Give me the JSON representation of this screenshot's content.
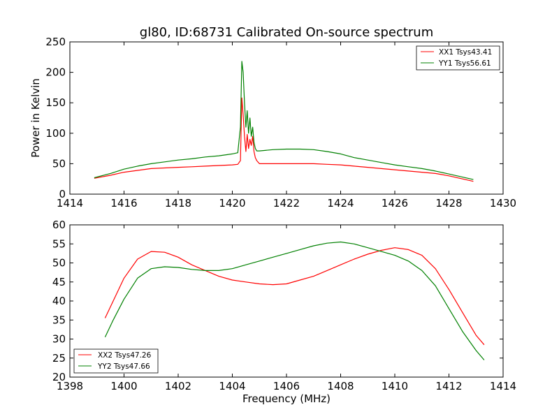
{
  "chart_data": [
    {
      "type": "line",
      "title": "gl80, ID:68731 Calibrated On-source spectrum",
      "xlabel": "",
      "ylabel": "Power in Kelvin",
      "xlim": [
        1414,
        1430
      ],
      "ylim": [
        0,
        250
      ],
      "xticks": [
        "1414",
        "1416",
        "1418",
        "1420",
        "1422",
        "1424",
        "1426",
        "1428",
        "1430"
      ],
      "yticks": [
        "0",
        "50",
        "100",
        "150",
        "200",
        "250"
      ],
      "legend_position": "top-right",
      "grid": false,
      "series": [
        {
          "name": "XX1 Tsys43.41",
          "color": "#ff0000",
          "x": [
            1414.9,
            1415.5,
            1416.0,
            1416.5,
            1417.0,
            1417.5,
            1418.0,
            1418.5,
            1419.0,
            1419.5,
            1420.0,
            1420.2,
            1420.3,
            1420.35,
            1420.4,
            1420.45,
            1420.5,
            1420.55,
            1420.6,
            1420.65,
            1420.7,
            1420.75,
            1420.8,
            1420.85,
            1420.9,
            1421.0,
            1421.5,
            1422.0,
            1422.5,
            1423.0,
            1423.5,
            1424.0,
            1424.5,
            1425.0,
            1425.5,
            1426.0,
            1426.5,
            1427.0,
            1427.5,
            1428.0,
            1428.5,
            1428.9
          ],
          "y": [
            26,
            31,
            36,
            39,
            42,
            43,
            44,
            45,
            46,
            47,
            48,
            49,
            55,
            158,
            130,
            95,
            70,
            98,
            75,
            90,
            80,
            95,
            70,
            60,
            55,
            50,
            50,
            50,
            50,
            50,
            49,
            48,
            46,
            44,
            42,
            40,
            38,
            36,
            34,
            30,
            25,
            21
          ]
        },
        {
          "name": "YY1 Tsys56.61",
          "color": "#008000",
          "x": [
            1414.9,
            1415.5,
            1416.0,
            1416.5,
            1417.0,
            1417.5,
            1418.0,
            1418.5,
            1419.0,
            1419.5,
            1420.0,
            1420.2,
            1420.3,
            1420.35,
            1420.4,
            1420.45,
            1420.5,
            1420.55,
            1420.6,
            1420.65,
            1420.7,
            1420.75,
            1420.8,
            1420.85,
            1420.9,
            1421.0,
            1421.5,
            1422.0,
            1422.5,
            1423.0,
            1423.5,
            1424.0,
            1424.5,
            1425.0,
            1425.5,
            1426.0,
            1426.5,
            1427.0,
            1427.5,
            1428.0,
            1428.5,
            1428.9
          ],
          "y": [
            27,
            34,
            41,
            46,
            50,
            53,
            56,
            58,
            61,
            63,
            66,
            68,
            110,
            218,
            200,
            150,
            110,
            137,
            100,
            125,
            95,
            110,
            85,
            75,
            71,
            71,
            73,
            74,
            74,
            73,
            70,
            66,
            60,
            56,
            52,
            48,
            45,
            42,
            38,
            33,
            28,
            24
          ]
        }
      ]
    },
    {
      "type": "line",
      "title": "",
      "xlabel": "Frequency (MHz)",
      "ylabel": "",
      "xlim": [
        1398,
        1414
      ],
      "ylim": [
        20,
        60
      ],
      "xticks": [
        "1398",
        "1400",
        "1402",
        "1404",
        "1406",
        "1408",
        "1410",
        "1412",
        "1414"
      ],
      "yticks": [
        "20",
        "25",
        "30",
        "35",
        "40",
        "45",
        "50",
        "55",
        "60"
      ],
      "legend_position": "bottom-left",
      "grid": false,
      "series": [
        {
          "name": "XX2 Tsys47.26",
          "color": "#ff0000",
          "x": [
            1399.3,
            1399.6,
            1400.0,
            1400.5,
            1401.0,
            1401.5,
            1402.0,
            1402.5,
            1403.0,
            1403.5,
            1404.0,
            1404.5,
            1405.0,
            1405.5,
            1406.0,
            1406.5,
            1407.0,
            1407.5,
            1408.0,
            1408.5,
            1409.0,
            1409.5,
            1410.0,
            1410.5,
            1411.0,
            1411.5,
            1412.0,
            1412.5,
            1413.0,
            1413.3
          ],
          "y": [
            35.5,
            40,
            46,
            51,
            53,
            52.8,
            51.5,
            49.5,
            48,
            46.5,
            45.5,
            45,
            44.5,
            44.3,
            44.5,
            45.5,
            46.5,
            48,
            49.5,
            51,
            52.3,
            53.3,
            54,
            53.5,
            52,
            48.5,
            43,
            37,
            31,
            28.5
          ]
        },
        {
          "name": "YY2 Tsys47.66",
          "color": "#008000",
          "x": [
            1399.3,
            1399.6,
            1400.0,
            1400.5,
            1401.0,
            1401.5,
            1402.0,
            1402.5,
            1403.0,
            1403.5,
            1404.0,
            1404.5,
            1405.0,
            1405.5,
            1406.0,
            1406.5,
            1407.0,
            1407.5,
            1408.0,
            1408.5,
            1409.0,
            1409.5,
            1410.0,
            1410.5,
            1411.0,
            1411.5,
            1412.0,
            1412.5,
            1413.0,
            1413.3
          ],
          "y": [
            30.5,
            35,
            40.5,
            46,
            48.5,
            49,
            48.8,
            48.3,
            48,
            48,
            48.5,
            49.5,
            50.5,
            51.5,
            52.5,
            53.5,
            54.5,
            55.2,
            55.5,
            55,
            54,
            53,
            52,
            50.5,
            48,
            44,
            38,
            32,
            27,
            24.5
          ]
        }
      ]
    }
  ]
}
